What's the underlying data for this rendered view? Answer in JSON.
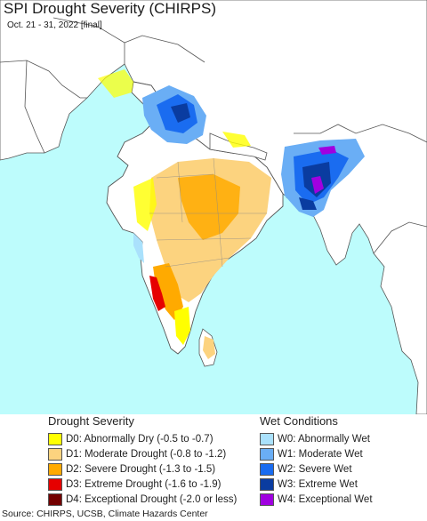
{
  "header": {
    "title": "SPI Drought Severity (CHIRPS)",
    "subtitle": "Oct. 21 - 31, 2022 [final]"
  },
  "map": {
    "colors": {
      "ocean": "#bdfcfc",
      "land": "#ffffff",
      "neighbor_land": "#ffffff",
      "borders": "#555555",
      "state_lines": "#888888"
    }
  },
  "legend": {
    "drought": {
      "heading": "Drought Severity",
      "items": [
        {
          "label": "D0: Abnormally Dry (-0.5 to -0.7)",
          "color": "#ffff00"
        },
        {
          "label": "D1: Moderate Drought (-0.8 to -1.2)",
          "color": "#fcd37f"
        },
        {
          "label": "D2: Severe Drought (-1.3 to -1.5)",
          "color": "#ffaa00"
        },
        {
          "label": "D3: Extreme Drought (-1.6 to -1.9)",
          "color": "#e60000"
        },
        {
          "label": "D4: Exceptional Drought (-2.0 or less)",
          "color": "#730000"
        }
      ]
    },
    "wet": {
      "heading": "Wet Conditions",
      "items": [
        {
          "label": "W0: Abnormally Wet",
          "color": "#aae1fc"
        },
        {
          "label": "W1: Moderate Wet",
          "color": "#6aaef5"
        },
        {
          "label": "W2: Severe Wet",
          "color": "#1a6cf0"
        },
        {
          "label": "W3: Extreme Wet",
          "color": "#0a3ca0"
        },
        {
          "label": "W4: Exceptional Wet",
          "color": "#a000e0"
        }
      ]
    }
  },
  "footer": {
    "source": "Source: CHIRPS, UCSB, Climate Hazards Center"
  }
}
